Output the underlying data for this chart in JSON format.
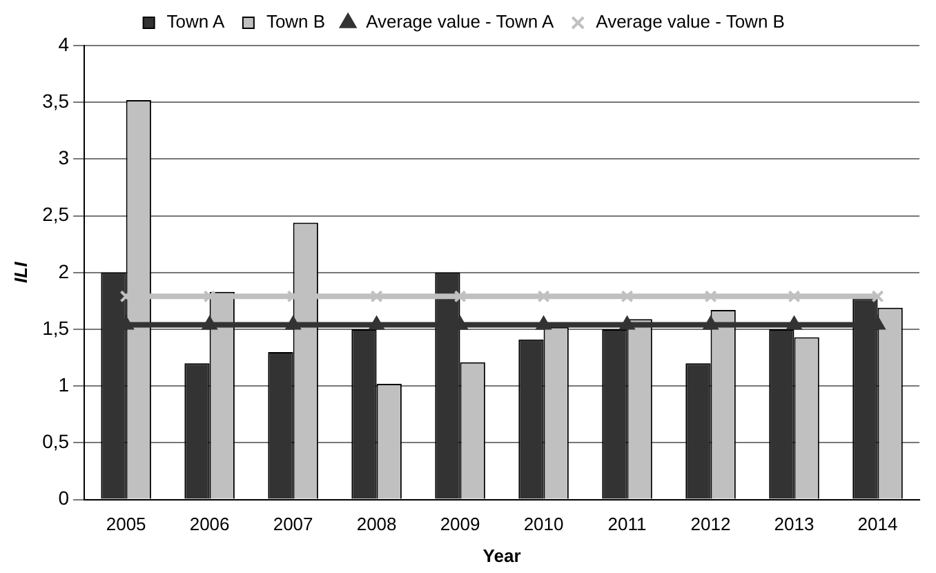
{
  "chart_data": {
    "type": "bar",
    "xlabel": "Year",
    "ylabel": "ILI",
    "categories": [
      "2005",
      "2006",
      "2007",
      "2008",
      "2009",
      "2010",
      "2011",
      "2012",
      "2013",
      "2014"
    ],
    "series": [
      {
        "name": "Town A",
        "color": "#333333",
        "values": [
          2,
          1.2,
          1.3,
          1.5,
          2,
          1.41,
          1.5,
          1.2,
          1.5,
          1.77
        ]
      },
      {
        "name": "Town B",
        "color": "#c0c0c0",
        "values": [
          3.52,
          1.83,
          2.44,
          1.02,
          1.21,
          1.52,
          1.59,
          1.67,
          1.43,
          1.69
        ]
      },
      {
        "name": "Average value - Town A",
        "type": "line",
        "color": "#333333",
        "marker": "triangle",
        "values": [
          1.54,
          1.54,
          1.54,
          1.54,
          1.54,
          1.54,
          1.54,
          1.54,
          1.54,
          1.54
        ]
      },
      {
        "name": "Average value - Town B",
        "type": "line",
        "color": "#c0c0c0",
        "marker": "cross",
        "values": [
          1.79,
          1.79,
          1.79,
          1.79,
          1.79,
          1.79,
          1.79,
          1.79,
          1.79,
          1.79
        ]
      }
    ],
    "ylim": [
      0,
      4
    ],
    "yticks": [
      0,
      {
        "value": 0.5,
        "label": "0,5"
      },
      1,
      {
        "value": 1.5,
        "label": "1,5"
      },
      2,
      {
        "value": 2.5,
        "label": "2,5"
      },
      3,
      {
        "value": 3.5,
        "label": "3,5"
      },
      4
    ],
    "grid": "y",
    "legend": "top"
  }
}
